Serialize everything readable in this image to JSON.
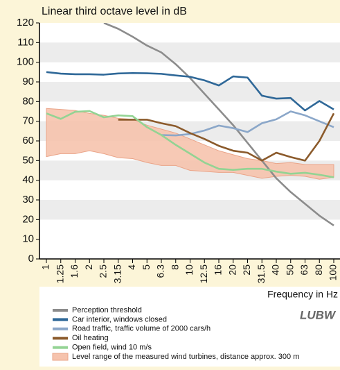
{
  "chart_data": {
    "type": "line",
    "title": "Linear third octave level in dB",
    "x_label": "Frequency in Hz",
    "logo": "LUBW",
    "categories": [
      "1",
      "1.25",
      "1.6",
      "2",
      "2.5",
      "3.15",
      "4",
      "5",
      "6.3",
      "8",
      "10",
      "12.5",
      "16",
      "20",
      "25",
      "31.5",
      "40",
      "50",
      "63",
      "80",
      "100"
    ],
    "ylim": [
      0,
      120
    ],
    "yticks": [
      0,
      10,
      20,
      30,
      40,
      50,
      60,
      70,
      80,
      90,
      100,
      110,
      120
    ],
    "grid": "bands",
    "series": [
      {
        "name": "Perception threshold",
        "color": "#8c8c8c",
        "values": [
          null,
          null,
          null,
          null,
          120,
          117,
          113,
          108.5,
          105,
          99,
          92,
          84,
          76,
          68,
          59,
          50,
          41,
          34,
          28,
          22,
          17
        ]
      },
      {
        "name": "Car interior, windows closed",
        "color": "#2f6898",
        "values": [
          95,
          94.2,
          93.9,
          93.9,
          93.7,
          94.3,
          94.5,
          94.4,
          94.1,
          93.3,
          92.6,
          90.8,
          88.2,
          92.8,
          92.2,
          83,
          81.5,
          81.8,
          75.5,
          80.3,
          76
        ]
      },
      {
        "name": "Road traffic, traffic volume of 2000 cars/h",
        "color": "#8ba7c9",
        "values": [
          null,
          null,
          null,
          null,
          null,
          null,
          null,
          null,
          63,
          62.8,
          63.5,
          65.3,
          67.8,
          66.5,
          64.5,
          69,
          71,
          75,
          73,
          70,
          67
        ]
      },
      {
        "name": "Oil heating",
        "color": "#8b5a2b",
        "values": [
          null,
          null,
          null,
          null,
          null,
          70.8,
          70.8,
          70.8,
          69,
          67.5,
          64,
          61,
          57.5,
          55,
          54,
          50,
          54,
          51.8,
          50,
          60,
          74
        ]
      },
      {
        "name": "Open field, wind 10 m/s",
        "color": "#93d393",
        "values": [
          74,
          71.2,
          74.8,
          75.2,
          72,
          73,
          72.6,
          67,
          63,
          58,
          53.5,
          49,
          45.8,
          45.3,
          45.8,
          45.8,
          44.4,
          43.3,
          43.8,
          42.8,
          41.5
        ]
      },
      {
        "name": "Level range of the measured wind turbines, distance approx. 300 m",
        "color": "#f6c3ad",
        "type": "range",
        "upper": [
          76.5,
          76,
          75.5,
          74,
          73,
          71.5,
          71,
          68,
          66,
          64,
          61,
          58,
          55,
          53,
          51,
          50,
          48.5,
          49,
          48,
          48,
          48
        ],
        "lower": [
          52,
          53.5,
          53.5,
          55,
          53.5,
          51.5,
          51,
          49,
          47.5,
          47.5,
          45,
          44.5,
          44,
          44,
          42.5,
          41,
          42,
          42.5,
          42,
          40.5,
          41.5
        ]
      }
    ]
  }
}
